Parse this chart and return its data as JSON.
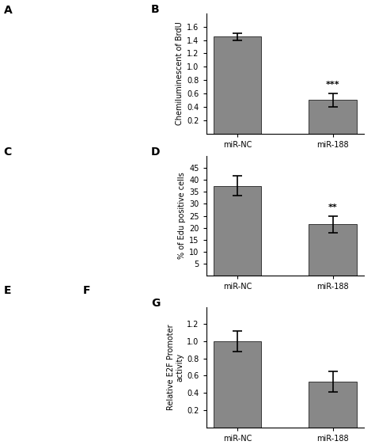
{
  "panel_B": {
    "categories": [
      "miR-NC",
      "miR-188"
    ],
    "values": [
      1.45,
      0.5
    ],
    "errors": [
      0.05,
      0.1
    ],
    "ylabel": "Chemiluminescent of BrdU",
    "ylim": [
      0,
      1.8
    ],
    "yticks": [
      0.2,
      0.4,
      0.6,
      0.8,
      1.0,
      1.2,
      1.4,
      1.6
    ],
    "sig_label": "***",
    "label": "B"
  },
  "panel_D": {
    "categories": [
      "miR-NC",
      "miR-188"
    ],
    "values": [
      37.5,
      21.5
    ],
    "errors": [
      4.0,
      3.5
    ],
    "ylabel": "% of Edu positive cells",
    "ylim": [
      0,
      50
    ],
    "yticks": [
      5,
      10,
      15,
      20,
      25,
      30,
      35,
      40,
      45
    ],
    "sig_label": "**",
    "label": "D"
  },
  "panel_G": {
    "categories": [
      "miR-NC",
      "miR-188"
    ],
    "values": [
      1.0,
      0.53
    ],
    "errors": [
      0.12,
      0.12
    ],
    "ylabel": "Relative E2F Promoter\nactivity",
    "ylim": [
      0,
      1.4
    ],
    "yticks": [
      0.2,
      0.4,
      0.6,
      0.8,
      1.0,
      1.2
    ],
    "sig_label": "",
    "label": "G"
  },
  "bar_color": "#888888",
  "bar_width": 0.5,
  "figsize": [
    4.74,
    5.62
  ],
  "dpi": 100
}
